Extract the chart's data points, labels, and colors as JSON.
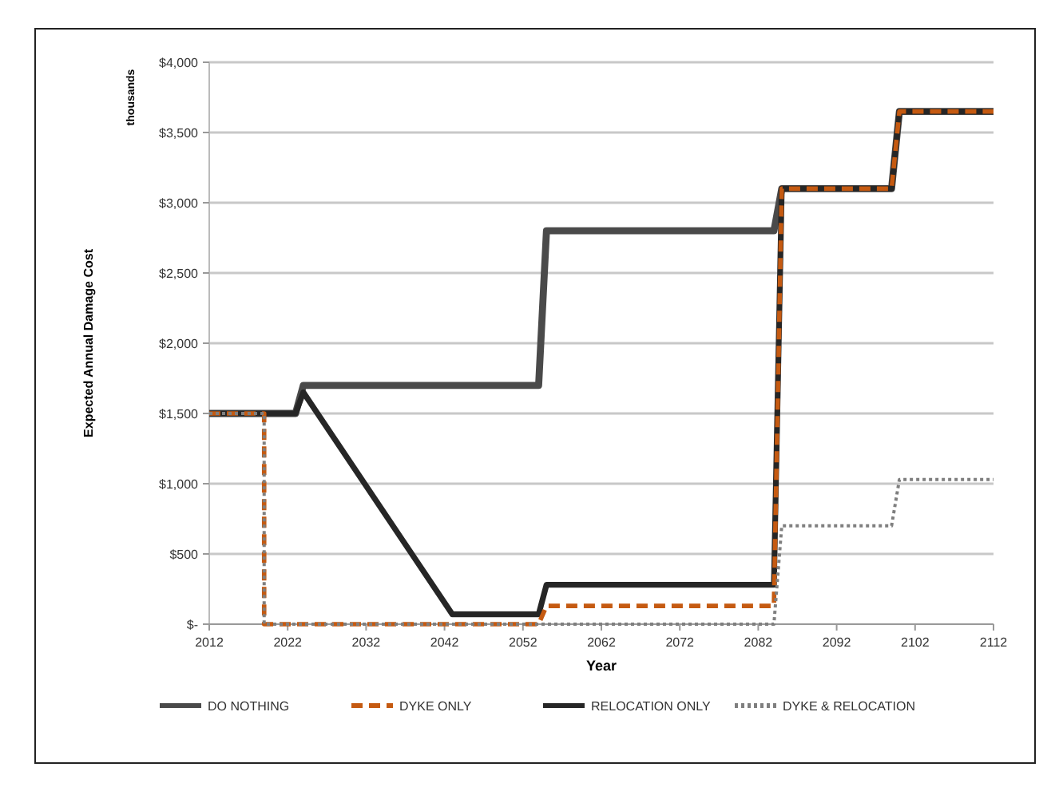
{
  "chart_data": {
    "type": "line",
    "xlabel": "Year",
    "ylabel": "Expected Annual Damage Cost",
    "annotations": [
      "thousands"
    ],
    "xlim": [
      2012,
      2112
    ],
    "xticks": [
      2012,
      2022,
      2032,
      2042,
      2052,
      2062,
      2072,
      2082,
      2092,
      2102,
      2112
    ],
    "ylim": [
      0,
      4000
    ],
    "yticks": [
      {
        "value": 0,
        "label": "$-"
      },
      {
        "value": 500,
        "label": "$500"
      },
      {
        "value": 1000,
        "label": "$1,000"
      },
      {
        "value": 1500,
        "label": "$1,500"
      },
      {
        "value": 2000,
        "label": "$2,000"
      },
      {
        "value": 2500,
        "label": "$2,500"
      },
      {
        "value": 3000,
        "label": "$3,000"
      },
      {
        "value": 3500,
        "label": "$3,500"
      },
      {
        "value": 4000,
        "label": "$4,000"
      }
    ],
    "grid": "y",
    "legend": "bottom",
    "marker": "none",
    "series": [
      {
        "name": "DO NOTHING",
        "color": "#4a4a4a",
        "line_style": "solid",
        "x": [
          2012,
          2023,
          2024,
          2054,
          2055,
          2084,
          2085,
          2099,
          2100,
          2112
        ],
        "values": [
          1500,
          1500,
          1700,
          1700,
          2800,
          2800,
          3100,
          3100,
          3650,
          3650
        ]
      },
      {
        "name": "DYKE ONLY",
        "color": "#c55a11",
        "line_style": "dashed",
        "x": [
          2012,
          2019,
          2019,
          2054,
          2055,
          2084,
          2085,
          2099,
          2100,
          2112
        ],
        "values": [
          1500,
          1500,
          0,
          0,
          130,
          130,
          3100,
          3100,
          3650,
          3650
        ]
      },
      {
        "name": "RELOCATION ONLY",
        "color": "#262626",
        "line_style": "solid",
        "x": [
          2012,
          2023,
          2024,
          2043,
          2054,
          2055,
          2084,
          2085,
          2099,
          2100,
          2112
        ],
        "values": [
          1500,
          1500,
          1650,
          70,
          70,
          280,
          280,
          3100,
          3100,
          3650,
          3650
        ]
      },
      {
        "name": "DYKE & RELOCATION",
        "color": "#7f7f7f",
        "line_style": "dotted",
        "x": [
          2012,
          2019,
          2019,
          2084,
          2085,
          2099,
          2100,
          2112
        ],
        "values": [
          1500,
          1500,
          0,
          0,
          700,
          700,
          1030,
          1030
        ]
      }
    ]
  }
}
